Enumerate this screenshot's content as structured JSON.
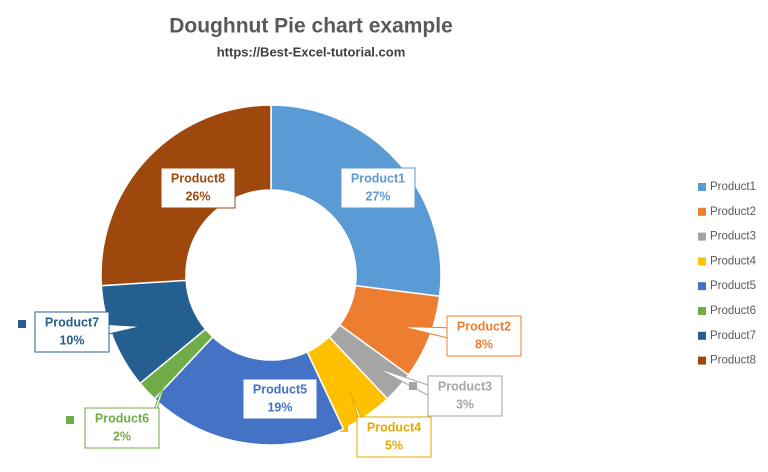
{
  "chart_data": {
    "type": "doughnut",
    "title": "Doughnut Pie chart example",
    "subtitle": "https://Best-Excel-tutorial.com",
    "categories": [
      "Product1",
      "Product2",
      "Product3",
      "Product4",
      "Product5",
      "Product6",
      "Product7",
      "Product8"
    ],
    "values": [
      27,
      8,
      3,
      5,
      19,
      2,
      10,
      26
    ],
    "value_labels": [
      "27%",
      "8%",
      "3%",
      "5%",
      "19%",
      "2%",
      "10%",
      "26%"
    ],
    "colors": [
      "#5b9bd5",
      "#ed7d31",
      "#a5a5a5",
      "#ffc000",
      "#4472c4",
      "#70ad47",
      "#255e91",
      "#9e480e"
    ],
    "legend": "right"
  }
}
